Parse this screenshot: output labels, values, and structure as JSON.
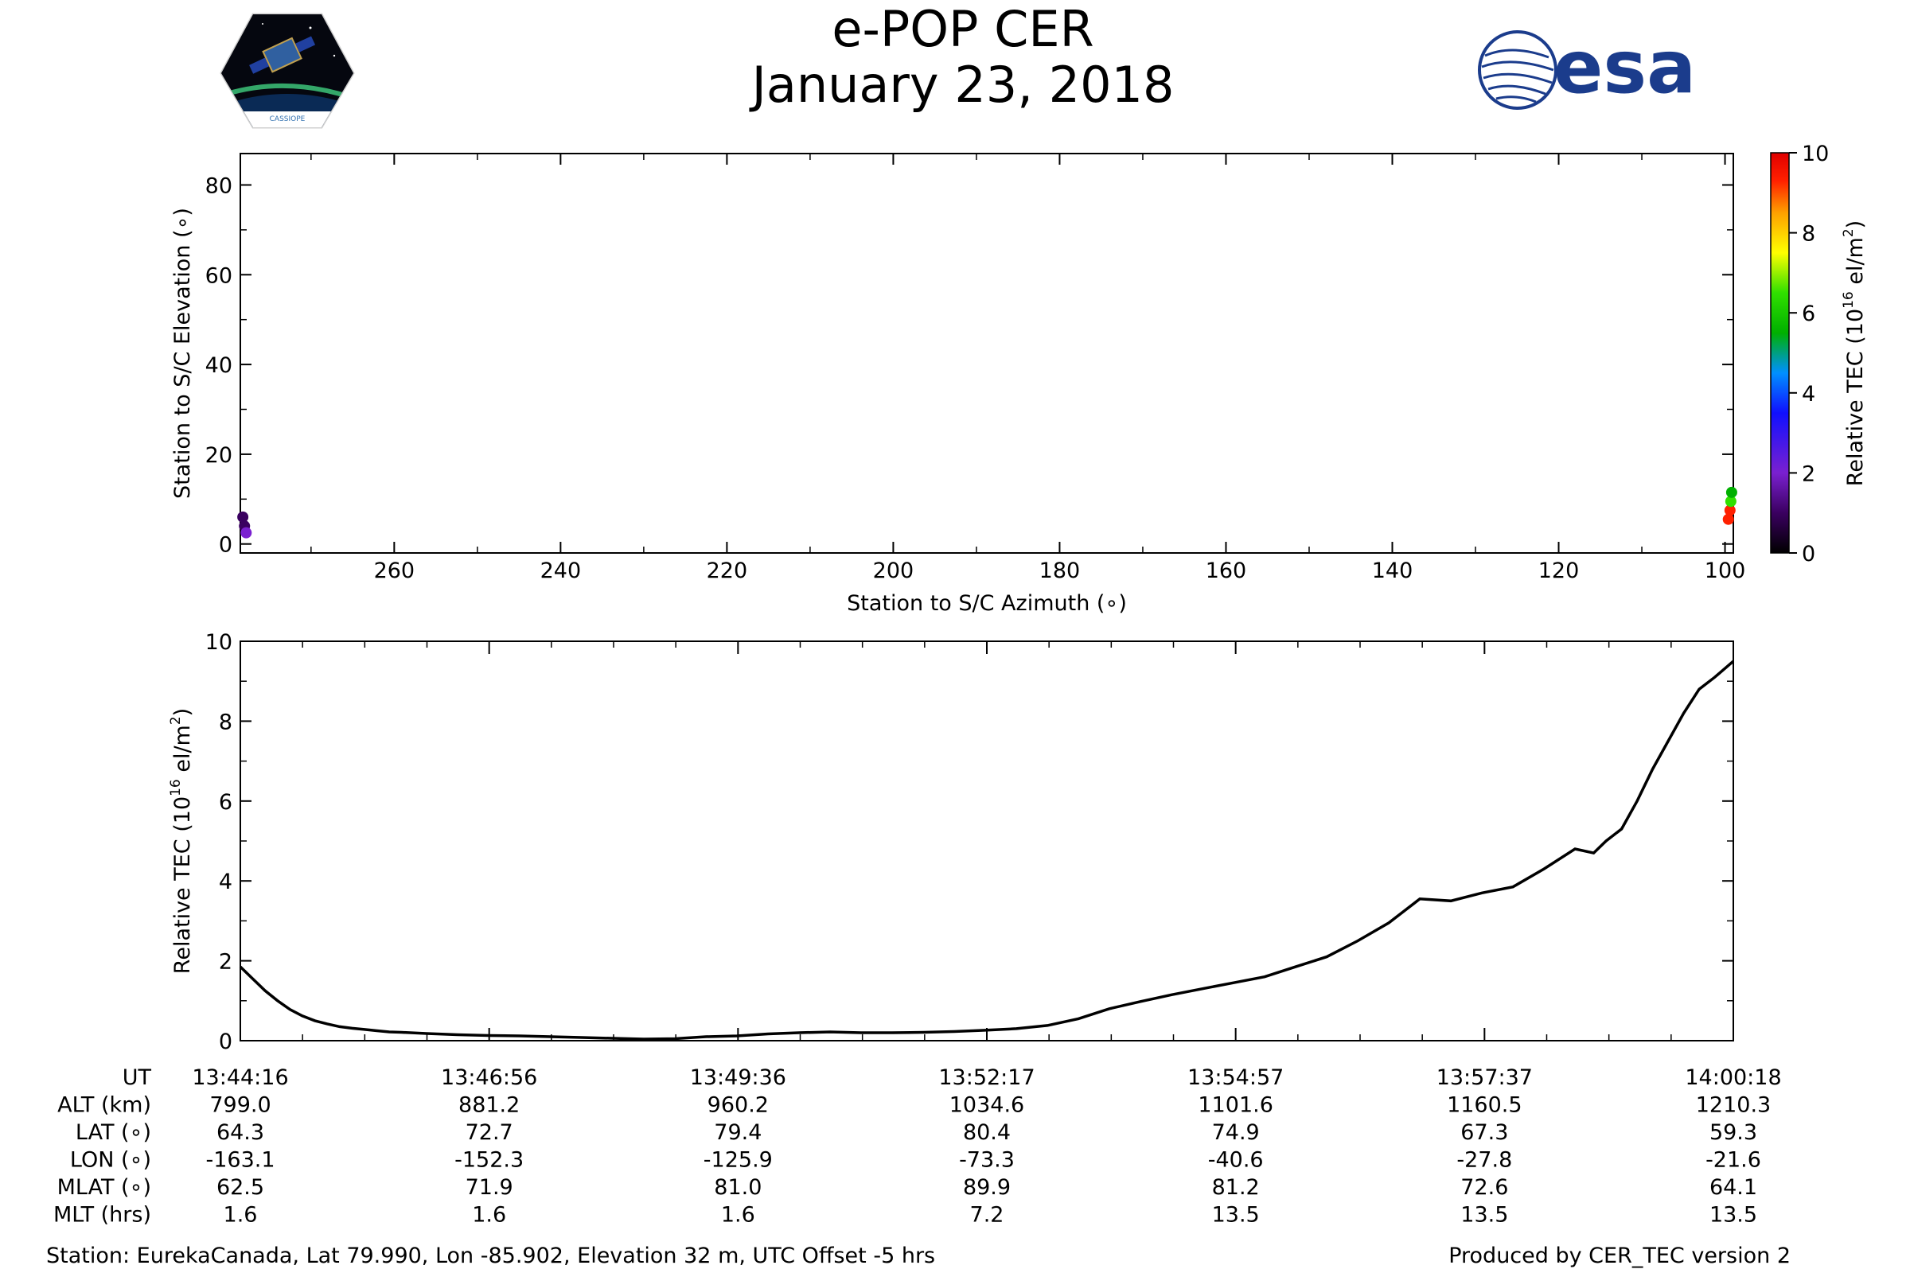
{
  "header": {
    "title": "e-POP CER",
    "date": "January 23, 2018",
    "logo_left": "CASSIOPE",
    "logo_right": "esa"
  },
  "chart_data": [
    {
      "type": "scatter",
      "xlabel": "Station to S/C Azimuth (∘)",
      "ylabel": "Station to S/C Elevation (∘)",
      "xlim": [
        278.5,
        99
      ],
      "ylim": [
        -2,
        87
      ],
      "xticks": [
        260,
        240,
        220,
        200,
        180,
        160,
        140,
        120,
        100
      ],
      "yticks": [
        0,
        20,
        40,
        60,
        80
      ],
      "grid": false,
      "colorbar": {
        "label": "Relative TEC (10¹⁶ el/m²)",
        "label_main": "Relative TEC (10",
        "label_exp": "16",
        "label_tail": " el/m",
        "label_sq": "2",
        "label_close": ")",
        "range": [
          0,
          10
        ],
        "ticks": [
          0,
          2,
          4,
          6,
          8,
          10
        ],
        "colormap": [
          "#000000",
          "#3a0060",
          "#7a20d0",
          "#1010ff",
          "#0090ff",
          "#00b000",
          "#30e000",
          "#ffff00",
          "#ffa000",
          "#ff2000",
          "#e00000"
        ]
      },
      "points": [
        {
          "az": 278.2,
          "el": 6,
          "tec": 0.8
        },
        {
          "az": 278.0,
          "el": 4,
          "tec": 1.2
        },
        {
          "az": 277.8,
          "el": 2.5,
          "tec": 1.8
        },
        {
          "az": 99.6,
          "el": 5.5,
          "tec": 8.5
        },
        {
          "az": 99.4,
          "el": 7.5,
          "tec": 9.0
        },
        {
          "az": 99.3,
          "el": 9.5,
          "tec": 6.0
        },
        {
          "az": 99.2,
          "el": 11.5,
          "tec": 5.0
        }
      ]
    },
    {
      "type": "line",
      "xlabel": "",
      "ylabel": "Relative TEC (10¹⁶ el/m²)",
      "ylabel_main": "Relative TEC (10",
      "ylabel_exp": "16",
      "ylabel_tail": " el/m",
      "ylabel_sq": "2",
      "ylabel_close": ")",
      "xlim": [
        0,
        962
      ],
      "ylim": [
        0,
        10
      ],
      "yticks": [
        0,
        2,
        4,
        6,
        8,
        10
      ],
      "grid": false,
      "series": [
        {
          "x": [
            0,
            8,
            16,
            24,
            32,
            40,
            48,
            56,
            64,
            72,
            80,
            88,
            96,
            104,
            120,
            140,
            160,
            180,
            200,
            220,
            240,
            260,
            280,
            300,
            320,
            340,
            360,
            380,
            400,
            420,
            440,
            460,
            480,
            500,
            520,
            540,
            560,
            580,
            600,
            620,
            640,
            660,
            680,
            700,
            720,
            740,
            760,
            780,
            800,
            820,
            840,
            860,
            872,
            880,
            890,
            900,
            910,
            920,
            930,
            940,
            950,
            962
          ],
          "y": [
            1.85,
            1.55,
            1.25,
            1.0,
            0.78,
            0.62,
            0.5,
            0.42,
            0.35,
            0.31,
            0.28,
            0.25,
            0.22,
            0.21,
            0.18,
            0.15,
            0.13,
            0.12,
            0.1,
            0.08,
            0.06,
            0.04,
            0.05,
            0.1,
            0.12,
            0.17,
            0.2,
            0.22,
            0.2,
            0.2,
            0.21,
            0.23,
            0.26,
            0.3,
            0.38,
            0.55,
            0.8,
            0.98,
            1.15,
            1.3,
            1.45,
            1.6,
            1.85,
            2.1,
            2.5,
            2.95,
            3.55,
            3.5,
            3.7,
            3.85,
            4.3,
            4.8,
            4.7,
            5.0,
            5.3,
            6.0,
            6.8,
            7.5,
            8.2,
            8.8,
            9.1,
            9.5
          ]
        }
      ]
    }
  ],
  "table": {
    "row_labels": [
      "UT",
      "ALT (km)",
      "LAT (∘)",
      "LON (∘)",
      "MLAT (∘)",
      "MLT (hrs)"
    ],
    "columns": [
      [
        "13:44:16",
        "799.0",
        "64.3",
        "-163.1",
        "62.5",
        "1.6"
      ],
      [
        "13:46:56",
        "881.2",
        "72.7",
        "-152.3",
        "71.9",
        "1.6"
      ],
      [
        "13:49:36",
        "960.2",
        "79.4",
        "-125.9",
        "81.0",
        "1.6"
      ],
      [
        "13:52:17",
        "1034.6",
        "80.4",
        "-73.3",
        "89.9",
        "7.2"
      ],
      [
        "13:54:57",
        "1101.6",
        "74.9",
        "-40.6",
        "81.2",
        "13.5"
      ],
      [
        "13:57:37",
        "1160.5",
        "67.3",
        "-27.8",
        "72.6",
        "13.5"
      ],
      [
        "14:00:18",
        "1210.3",
        "59.3",
        "-21.6",
        "64.1",
        "13.5"
      ]
    ]
  },
  "footer": {
    "station": "Station: EurekaCanada, Lat 79.990, Lon -85.902, Elevation 32 m, UTC Offset -5 hrs",
    "produced_by": "Produced by CER_TEC version 2"
  }
}
